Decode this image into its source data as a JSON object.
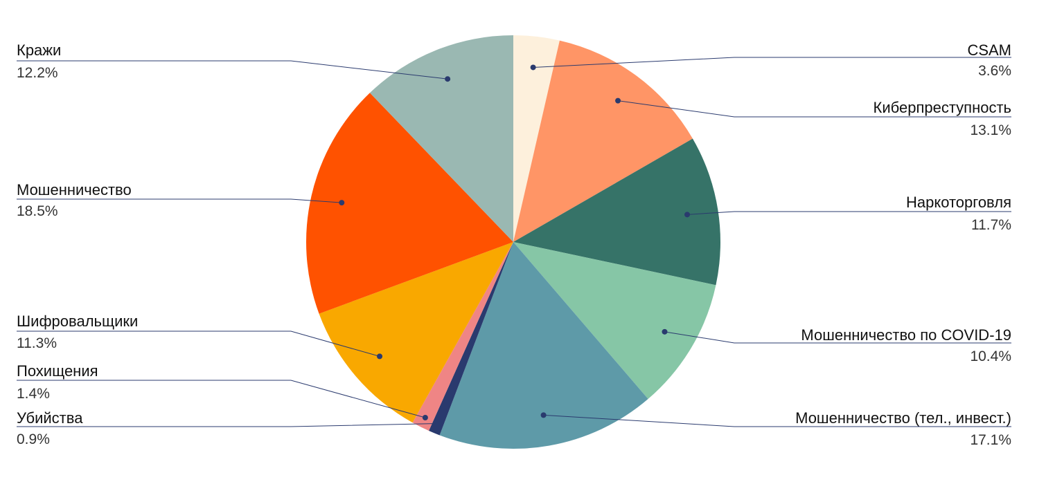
{
  "chart_data": {
    "type": "pie",
    "categories": [
      "CSAM",
      "Киберпреступность",
      "Наркоторговля",
      "Мошенничество по COVID-19",
      "Мошенничество (тел., инвест.)",
      "Убийства",
      "Похищения",
      "Шифровальщики",
      "Мошенничество",
      "Кражи"
    ],
    "values": [
      3.6,
      13.1,
      11.7,
      10.4,
      17.1,
      0.9,
      1.4,
      11.3,
      18.5,
      12.2
    ],
    "value_labels": [
      "3.6%",
      "13.1%",
      "11.7%",
      "10.4%",
      "17.1%",
      "0.9%",
      "1.4%",
      "11.3%",
      "18.5%",
      "12.2%"
    ],
    "colors": [
      "#fdf0dc",
      "#ff9566",
      "#367368",
      "#86c6a6",
      "#5e9aa8",
      "#2a3a6e",
      "#ef8585",
      "#f9a800",
      "#ff5200",
      "#9ab8b2"
    ]
  }
}
